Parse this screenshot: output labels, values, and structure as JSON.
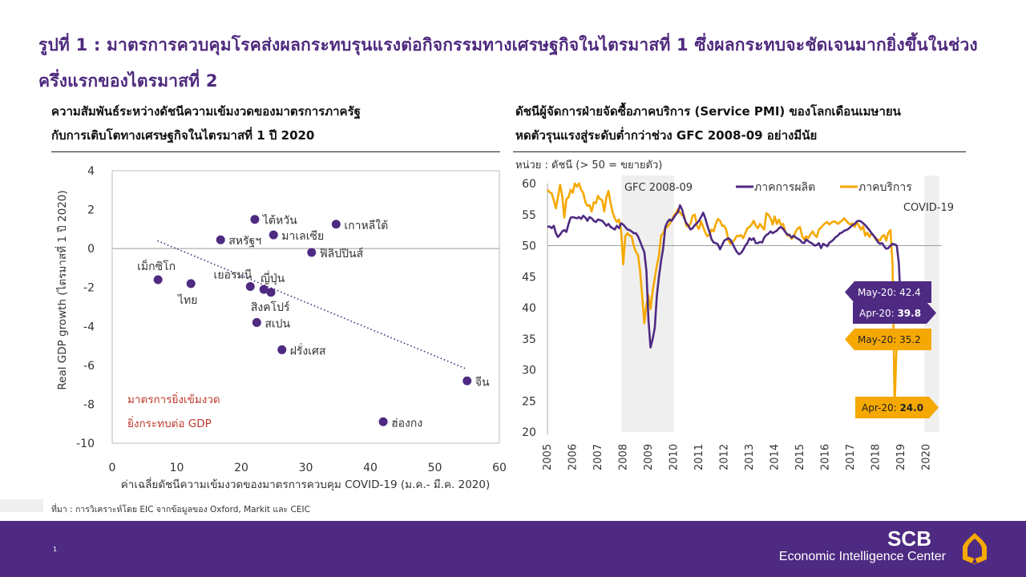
{
  "title": "รูปที่ 1 : มาตรการควบคุมโรคส่งผลกระทบรุนแรงต่อกิจกรรมทางเศรษฐกิจในไตรมาสที่ 1 ซึ่งผลกระทบจะชัดเจนมากยิ่งขึ้นในช่วงครึ่งแรกของไตรมาสที่ 2",
  "left_panel": {
    "subtitle_line1": "ความสัมพันธ์ระหว่างดัชนีความเข้มงวดของมาตรการภาครัฐ",
    "subtitle_line2": "กับการเติบโตทางเศรษฐกิจในไตรมาสที่ 1 ปี 2020"
  },
  "right_panel": {
    "subtitle_line1": "ดัชนีผู้จัดการฝ่ายจัดซื้อภาคบริการ (Service PMI) ของโลกเดือนเมษายน",
    "subtitle_line2": "หดตัวรุนแรงสู่ระดับต่ำกว่าช่วง  GFC 2008-09 อย่างมีนัย",
    "unit": "หน่วย : ดัชนี (> 50 = ขยายตัว)"
  },
  "source": "ที่มา : การวิเคราะห์โดย EIC จากข้อมูลของ Oxford, Markit และ CEIC",
  "footer": {
    "page_number": "1",
    "brand": "SCB",
    "brand_sub": "Economic Intelligence Center",
    "brand_color": "#4e2a82",
    "accent_color": "#f5a800"
  },
  "chart_data": [
    {
      "type": "scatter",
      "title": "ความสัมพันธ์ระหว่างดัชนีความเข้มงวดของมาตรการภาครัฐกับการเติบโตทางเศรษฐกิจในไตรมาสที่ 1 ปี 2020",
      "xlabel": "ค่าเฉลี่ยดัชนีความเข้มงวดของมาตรการควบคุม COVID-19 (ม.ค.- มี.ค. 2020)",
      "ylabel": "Real GDP growth (ไตรมาสที่ 1 ปี 2020)",
      "xlim": [
        0,
        60
      ],
      "ylim": [
        -10,
        4
      ],
      "xticks": [
        "0",
        "10",
        "20",
        "30",
        "40",
        "50",
        "60"
      ],
      "yticks": [
        "4",
        "2",
        "0",
        "-2",
        "-4",
        "-6",
        "-8",
        "-10"
      ],
      "color": "#4e2a82",
      "points": [
        {
          "label": "เม็กซิโก",
          "x": 7.1,
          "y": -1.6,
          "label_pos": "above"
        },
        {
          "label": "ไทย",
          "x": 12.2,
          "y": -1.8,
          "label_pos": "below"
        },
        {
          "label": "สหรัฐฯ",
          "x": 16.8,
          "y": 0.45,
          "label_pos": "right"
        },
        {
          "label": "ไต้หวัน",
          "x": 22.1,
          "y": 1.5,
          "label_pos": "right"
        },
        {
          "label": "มาเลเซีย",
          "x": 25.0,
          "y": 0.7,
          "label_pos": "right"
        },
        {
          "label": "เกาหลีใต้",
          "x": 34.7,
          "y": 1.25,
          "label_pos": "right"
        },
        {
          "label": "ฟิลิปปินส์",
          "x": 30.9,
          "y": -0.2,
          "label_pos": "right"
        },
        {
          "label": "เยอรมนี",
          "x": 21.4,
          "y": -1.95,
          "label_pos": "above-left"
        },
        {
          "label": "สิงคโปร์",
          "x": 23.5,
          "y": -2.1,
          "label_pos": "below"
        },
        {
          "label": "ญี่ปุ่น",
          "x": 24.6,
          "y": -2.25,
          "label_pos": "above"
        },
        {
          "label": "สเปน",
          "x": 22.4,
          "y": -3.8,
          "label_pos": "right"
        },
        {
          "label": "ฝรั่งเศส",
          "x": 26.3,
          "y": -5.2,
          "label_pos": "right"
        },
        {
          "label": "จีน",
          "x": 55.0,
          "y": -6.8,
          "label_pos": "right"
        },
        {
          "label": "ฮ่องกง",
          "x": 42.0,
          "y": -8.9,
          "label_pos": "right"
        }
      ],
      "trendline": {
        "x": [
          7.0,
          55.0
        ],
        "y": [
          0.4,
          -6.2
        ],
        "style": "dotted"
      },
      "annotation_line1": "มาตรการยิ่งเข้มงวด",
      "annotation_line2": "ยิ่งกระทบต่อ GDP",
      "annotation_color": "#c0392b"
    },
    {
      "type": "line",
      "title": "ดัชนีผู้จัดการฝ่ายจัดซื้อภาคบริการ (Service PMI) ของโลก",
      "ylabel": "ดัชนี",
      "ylim": [
        20,
        60
      ],
      "yticks": [
        "60",
        "55",
        "50",
        "45",
        "40",
        "35",
        "30",
        "25",
        "20"
      ],
      "x_start": "2005-01",
      "x_end": "2020-05",
      "xticks": [
        "2005",
        "2006",
        "2007",
        "2008",
        "2009",
        "2010",
        "2011",
        "2012",
        "2013",
        "2014",
        "2015",
        "2016",
        "2017",
        "2018",
        "2019",
        "2020"
      ],
      "reference_line": 50,
      "shaded_periods": [
        {
          "label": "GFC 2008-09",
          "start": "2008-01",
          "end": "2009-12"
        },
        {
          "label": "COVID-19",
          "start": "2020-01",
          "end": "2020-06"
        }
      ],
      "series": [
        {
          "name": "ภาคการผลิต",
          "color": "#4e2a82",
          "values_note": "monthly, Jan-2005 to May-2020",
          "values": [
            53.0,
            53.1,
            52.8,
            53.2,
            52.0,
            51.4,
            51.8,
            52.3,
            52.5,
            52.2,
            53.5,
            54.5,
            54.6,
            54.5,
            54.4,
            54.6,
            54.3,
            54.8,
            54.5,
            54.0,
            54.6,
            54.4,
            54.0,
            53.8,
            54.2,
            54.1,
            54.0,
            53.6,
            53.2,
            53.5,
            53.0,
            52.8,
            52.6,
            53.2,
            52.8,
            53.6,
            53.4,
            53.0,
            52.6,
            52.5,
            52.3,
            52.0,
            52.0,
            51.5,
            50.7,
            49.8,
            49.0,
            46.0,
            38.0,
            33.6,
            35.0,
            36.8,
            42.0,
            45.0,
            47.6,
            49.6,
            53.0,
            53.8,
            54.2,
            54.0,
            54.5,
            55.0,
            55.4,
            56.5,
            55.8,
            54.4,
            53.6,
            53.2,
            52.6,
            52.8,
            53.3,
            53.6,
            54.0,
            54.6,
            55.3,
            54.4,
            53.2,
            52.2,
            51.0,
            50.5,
            50.4,
            50.2,
            49.4,
            50.1,
            50.8,
            51.0,
            51.2,
            50.9,
            50.3,
            49.6,
            49.0,
            48.6,
            48.8,
            49.3,
            50.0,
            50.4,
            51.2,
            50.9,
            51.2,
            50.4,
            50.4,
            50.6,
            50.5,
            51.3,
            51.7,
            51.9,
            52.3,
            52.0,
            52.2,
            52.4,
            52.8,
            53.0,
            52.7,
            52.2,
            51.8,
            51.7,
            51.3,
            51.6,
            51.3,
            51.1,
            50.9,
            50.5,
            50.4,
            51.0,
            50.7,
            50.5,
            50.3,
            50.0,
            50.1,
            50.4,
            49.6,
            50.3,
            50.1,
            49.9,
            50.5,
            50.7,
            51.0,
            51.4,
            51.6,
            52.0,
            52.1,
            52.4,
            52.5,
            52.7,
            53.0,
            53.3,
            53.5,
            53.9,
            54.0,
            53.9,
            53.6,
            53.3,
            52.9,
            52.5,
            52.0,
            51.6,
            51.2,
            50.6,
            50.3,
            50.4,
            49.9,
            49.5,
            49.6,
            50.0,
            50.3,
            50.2,
            50.0,
            47.1,
            39.8,
            42.4
          ]
        },
        {
          "name": "ภาคบริการ",
          "color": "#f5a800",
          "values_note": "monthly, Jan-2005 to May-2020",
          "values": [
            59.0,
            58.6,
            58.4,
            57.3,
            56.0,
            57.8,
            59.8,
            58.0,
            54.5,
            57.5,
            57.8,
            59.0,
            58.5,
            60.0,
            59.5,
            60.0,
            59.0,
            58.5,
            57.0,
            56.4,
            56.5,
            55.5,
            57.0,
            56.8,
            58.0,
            57.5,
            57.3,
            55.5,
            57.8,
            58.8,
            56.8,
            55.3,
            54.4,
            53.8,
            54.2,
            52.4,
            47.0,
            51.5,
            52.0,
            51.6,
            51.5,
            50.0,
            49.0,
            48.5,
            46.0,
            42.0,
            37.5,
            40.4,
            42.0,
            39.8,
            42.7,
            44.8,
            46.8,
            48.4,
            51.6,
            52.0,
            52.8,
            53.0,
            53.5,
            54.0,
            54.8,
            55.2,
            55.9,
            55.3,
            54.9,
            54.8,
            53.2,
            53.0,
            53.6,
            54.8,
            55.0,
            53.2,
            52.7,
            53.9,
            53.0,
            52.1,
            51.5,
            51.8,
            52.6,
            52.3,
            53.5,
            54.3,
            54.0,
            53.2,
            53.2,
            52.5,
            50.8,
            50.3,
            50.6,
            51.0,
            51.6,
            51.5,
            51.7,
            51.2,
            52.0,
            52.8,
            53.0,
            53.4,
            54.0,
            53.2,
            52.8,
            53.5,
            53.0,
            52.6,
            55.2,
            55.0,
            54.4,
            53.4,
            54.7,
            53.5,
            54.2,
            53.3,
            53.5,
            52.3,
            51.6,
            51.8,
            51.1,
            51.4,
            52.3,
            52.8,
            53.0,
            51.6,
            51.0,
            51.5,
            51.2,
            51.8,
            52.3,
            51.7,
            51.4,
            52.6,
            52.9,
            53.3,
            53.6,
            53.8,
            53.4,
            53.7,
            53.9,
            53.8,
            53.5,
            53.8,
            54.0,
            54.4,
            54.0,
            53.6,
            53.4,
            53.6,
            53.0,
            53.8,
            53.2,
            52.6,
            53.1,
            51.6,
            52.1,
            51.4,
            52.0,
            51.6,
            51.0,
            51.0,
            50.8,
            51.5,
            51.7,
            50.8,
            52.1,
            52.5,
            47.0,
            24.0,
            35.2
          ]
        }
      ],
      "callouts": [
        {
          "text_prefix": "May-20: ",
          "value": "42.4",
          "series": "ภาคการผลิต"
        },
        {
          "text_prefix": "Apr-20: ",
          "value": "39.8",
          "series": "ภาคการผลิต"
        },
        {
          "text_prefix": "May-20: ",
          "value": "35.2",
          "series": "ภาคบริการ"
        },
        {
          "text_prefix": "Apr-20: ",
          "value": "24.0",
          "series": "ภาคบริการ"
        }
      ]
    }
  ]
}
